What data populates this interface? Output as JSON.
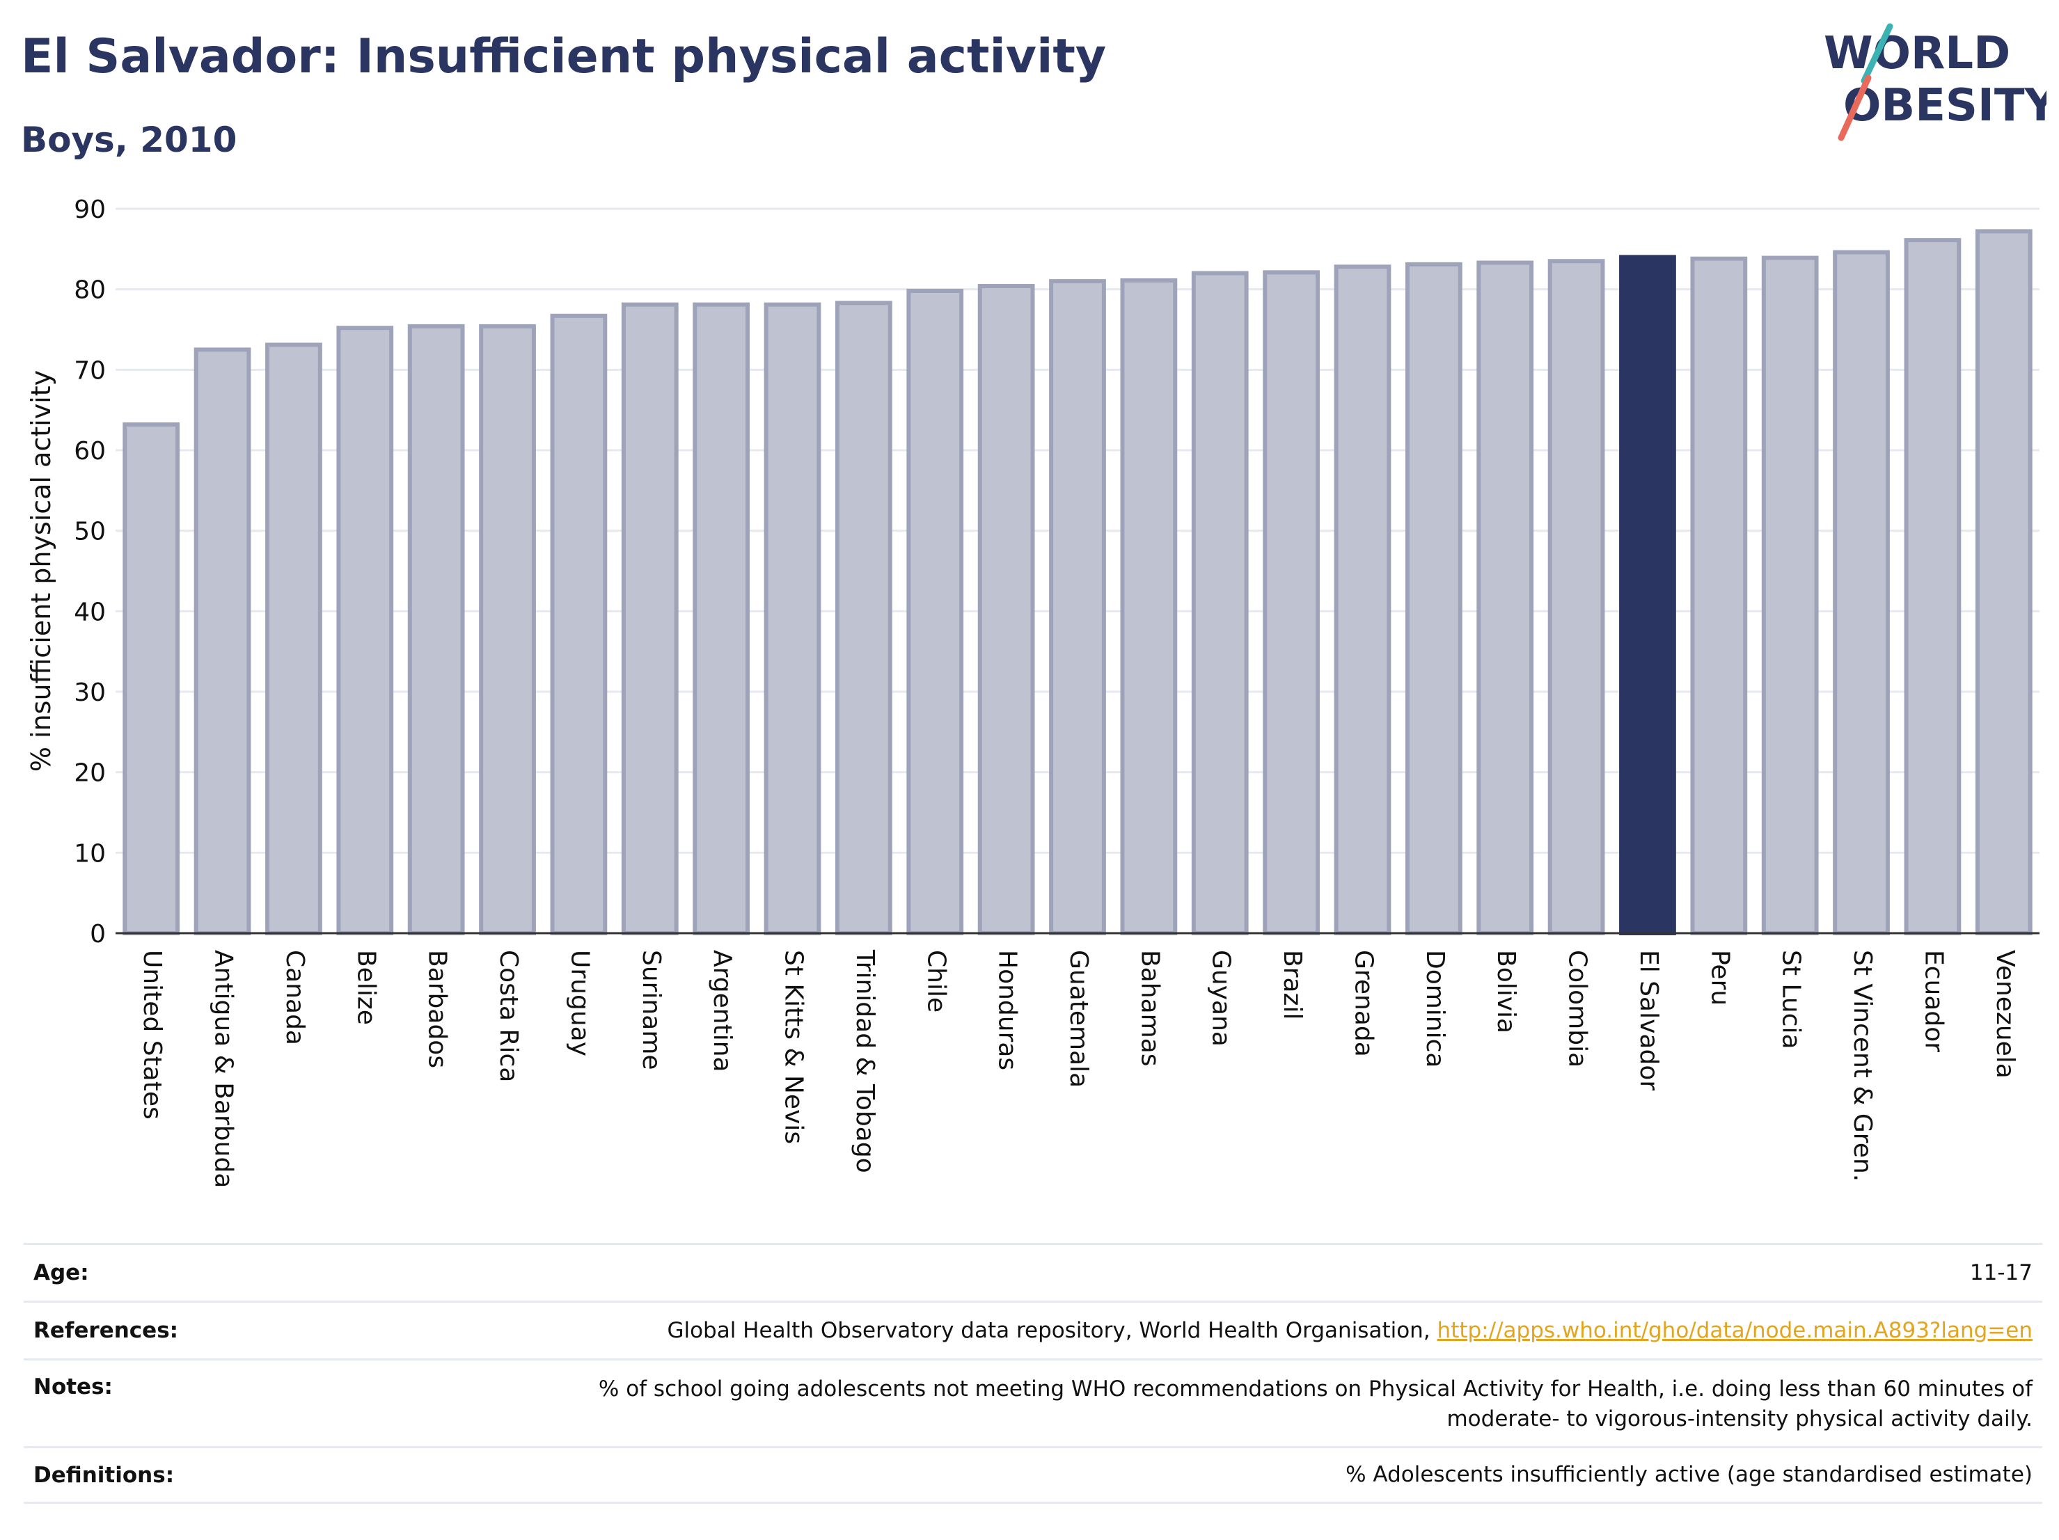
{
  "header": {
    "title": "El Salvador: Insufficient physical activity",
    "subtitle": "Boys, 2010"
  },
  "logo": {
    "line1": "WORLD",
    "line2": "OBESITY",
    "colors": {
      "text": "#2b3561",
      "teal": "#3bb3b3",
      "coral": "#e96a5a"
    }
  },
  "chart_data": {
    "type": "bar",
    "title": "",
    "xlabel": "",
    "ylabel": "% insufficient physical activity",
    "ylim": [
      0,
      90
    ],
    "yticks": [
      0,
      10,
      20,
      30,
      40,
      50,
      60,
      70,
      80,
      90
    ],
    "grid": "horizontal",
    "highlight": "El Salvador",
    "colors": {
      "bar": "#bfc2d1",
      "bar_edge": "#9ea3b9",
      "highlight": "#2b3561",
      "grid": "#e6e9ef",
      "axis": "#333333"
    },
    "categories": [
      "United States",
      "Antigua & Barbuda",
      "Canada",
      "Belize",
      "Barbados",
      "Costa Rica",
      "Uruguay",
      "Suriname",
      "Argentina",
      "St Kitts & Nevis",
      "Trinidad & Tobago",
      "Chile",
      "Honduras",
      "Guatemala",
      "Bahamas",
      "Guyana",
      "Brazil",
      "Grenada",
      "Dominica",
      "Bolivia",
      "Colombia",
      "El Salvador",
      "Peru",
      "St Lucia",
      "St Vincent & Gren.",
      "Ecuador",
      "Venezuela"
    ],
    "values": [
      63.2,
      72.5,
      73.1,
      75.2,
      75.4,
      75.4,
      76.7,
      78.1,
      78.1,
      78.1,
      78.3,
      79.8,
      80.4,
      81.0,
      81.1,
      82.0,
      82.1,
      82.8,
      83.1,
      83.3,
      83.5,
      84.0,
      83.8,
      83.9,
      84.6,
      86.1,
      87.2
    ]
  },
  "info": {
    "rows": [
      {
        "label": "Age:",
        "value": "11-17"
      },
      {
        "label": "References:",
        "value": "Global Health Observatory data repository, World Health Organisation, ",
        "link": "http://apps.who.int/gho/data/node.main.A893?lang=en"
      },
      {
        "label": "Notes:",
        "value": "% of school going adolescents not meeting WHO recommendations on Physical Activity for Health, i.e. doing less than 60 minutes of moderate- to vigorous-intensity physical activity daily."
      },
      {
        "label": "Definitions:",
        "value": "% Adolescents insufficiently active (age standardised estimate)"
      }
    ]
  }
}
